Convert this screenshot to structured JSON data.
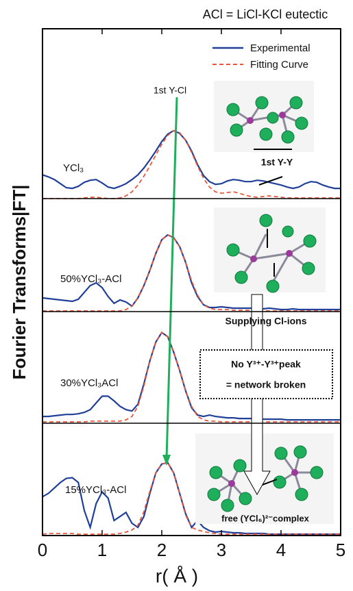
{
  "chart_data": {
    "type": "line",
    "title": "ACl = LiCl-KCl eutectic",
    "xlabel": "r( Å )",
    "ylabel": "Fourier Transforms|FT|",
    "xlim": [
      0,
      5
    ],
    "xticks": [
      0,
      1,
      2,
      3,
      4,
      5
    ],
    "x": [
      0,
      0.1,
      0.2,
      0.3,
      0.4,
      0.5,
      0.6,
      0.7,
      0.8,
      0.9,
      1,
      1.1,
      1.2,
      1.3,
      1.4,
      1.5,
      1.6,
      1.7,
      1.8,
      1.9,
      2,
      2.1,
      2.2,
      2.3,
      2.4,
      2.5,
      2.6,
      2.7,
      2.8,
      2.9,
      3,
      3.1,
      3.2,
      3.3,
      3.4,
      3.5,
      3.6,
      3.7,
      3.8,
      3.9,
      4,
      4.1,
      4.2,
      4.3,
      4.4,
      4.5,
      4.6,
      4.7,
      4.8,
      4.9,
      5
    ],
    "annotations": [
      "1st Y-Cl",
      "1st Y-Y",
      "Supplying Cl-ions",
      "No Y³⁺-Y³⁺peak",
      "= network broken",
      "free (YCl₆)²⁻complex"
    ],
    "panels": [
      {
        "label": "YCl₃",
        "ylim": [
          0,
          2.5
        ],
        "series": [
          {
            "name": "Experimental",
            "color": "#1f3f99",
            "values": [
              0.35,
              0.32,
              0.28,
              0.22,
              0.16,
              0.15,
              0.18,
              0.24,
              0.27,
              0.28,
              0.23,
              0.17,
              0.15,
              0.18,
              0.22,
              0.28,
              0.35,
              0.45,
              0.57,
              0.7,
              0.84,
              0.95,
              1.0,
              0.96,
              0.86,
              0.7,
              0.5,
              0.34,
              0.25,
              0.21,
              0.22,
              0.26,
              0.28,
              0.27,
              0.25,
              0.25,
              0.27,
              0.26,
              0.24,
              0.22,
              0.2,
              0.17,
              0.15,
              0.17,
              0.22,
              0.25,
              0.24,
              0.2,
              0.17,
              0.15,
              0.15
            ]
          },
          {
            "name": "Fitting Curve",
            "color": "#e8553a",
            "values": [
              0,
              0,
              0,
              0,
              0,
              0,
              0,
              0.01,
              0.02,
              0.02,
              0.01,
              0,
              0,
              0.01,
              0.04,
              0.1,
              0.2,
              0.33,
              0.48,
              0.64,
              0.8,
              0.93,
              1.0,
              0.97,
              0.86,
              0.68,
              0.48,
              0.3,
              0.17,
              0.1,
              0.08,
              0.09,
              0.1,
              0.08,
              0.05,
              0.03,
              0.02,
              0.03,
              0.04,
              0.03,
              0.02,
              0.01,
              0.01,
              0.01,
              0.01,
              0.01,
              0.01,
              0.01,
              0.01,
              0.01,
              0.01
            ]
          }
        ]
      },
      {
        "label": "50%YCl₃-ACl",
        "ylim": [
          0,
          1.65
        ],
        "series": [
          {
            "color": "#1f3f99",
            "values": [
              0.2,
              0.19,
              0.18,
              0.17,
              0.16,
              0.15,
              0.18,
              0.28,
              0.38,
              0.42,
              0.35,
              0.22,
              0.12,
              0.17,
              0.14,
              0.08,
              0.2,
              0.38,
              0.6,
              0.85,
              1.05,
              1.12,
              1.08,
              0.95,
              0.72,
              0.42,
              0.22,
              0.1,
              0.06,
              0.06,
              0.07,
              0.06,
              0.05,
              0.05,
              0.05,
              0.05,
              0.04,
              0.04,
              0.05,
              0.04,
              0.03,
              0.03,
              0.04,
              0.03,
              0.03,
              0.03,
              0.03,
              0.03,
              0.03,
              0.03,
              0.03
            ]
          },
          {
            "color": "#e8553a",
            "values": [
              0.01,
              0.01,
              0.01,
              0.01,
              0.01,
              0.01,
              0.01,
              0.01,
              0.01,
              0.01,
              0.01,
              0.01,
              0.01,
              0.01,
              0.03,
              0.08,
              0.2,
              0.38,
              0.6,
              0.85,
              1.05,
              1.12,
              1.08,
              0.95,
              0.72,
              0.45,
              0.24,
              0.1,
              0.05,
              0.03,
              0.03,
              0.03,
              0.02,
              0.02,
              0.02,
              0.02,
              0.02,
              0.01,
              0.01,
              0.01,
              0.01,
              0.01,
              0.01,
              0.01,
              0.01,
              0.01,
              0.01,
              0.01,
              0.01,
              0.01,
              0.01
            ]
          }
        ]
      },
      {
        "label": "30%YCl₃ACl",
        "ylim": [
          0,
          1.65
        ],
        "series": [
          {
            "color": "#1f3f99",
            "values": [
              0.1,
              0.1,
              0.11,
              0.12,
              0.13,
              0.13,
              0.14,
              0.16,
              0.2,
              0.3,
              0.4,
              0.4,
              0.33,
              0.25,
              0.2,
              0.18,
              0.28,
              0.58,
              0.92,
              1.2,
              1.34,
              1.28,
              1.05,
              0.78,
              0.48,
              0.23,
              0.12,
              0.1,
              0.12,
              0.1,
              0.09,
              0.08,
              0.08,
              0.07,
              0.07,
              0.07,
              0.06,
              0.06,
              0.06,
              0.06,
              0.06,
              0.05,
              0.05,
              0.05,
              0.05,
              0.05,
              0.05,
              0.05,
              0.05,
              0.05,
              0.05
            ]
          },
          {
            "color": "#e8553a",
            "values": [
              0.02,
              0.02,
              0.02,
              0.02,
              0.02,
              0.02,
              0.02,
              0.02,
              0.03,
              0.03,
              0.03,
              0.03,
              0.03,
              0.03,
              0.05,
              0.1,
              0.25,
              0.55,
              0.92,
              1.2,
              1.34,
              1.28,
              1.05,
              0.78,
              0.48,
              0.25,
              0.1,
              0.05,
              0.03,
              0.03,
              0.02,
              0.02,
              0.02,
              0.02,
              0.02,
              0.02,
              0.02,
              0.02,
              0.02,
              0.02,
              0.02,
              0.02,
              0.02,
              0.02,
              0.02,
              0.02,
              0.02,
              0.02,
              0.02,
              0.02,
              0.02
            ]
          }
        ]
      },
      {
        "label": "15%YCl₃-ACl",
        "ylim": [
          0,
          1.65
        ],
        "series": [
          {
            "color": "#1f3f99",
            "values": [
              0.57,
              0.62,
              0.7,
              0.78,
              0.84,
              0.85,
              0.78,
              0.37,
              0.12,
              0.47,
              0.64,
              0.55,
              0.22,
              0.28,
              0.34,
              0.18,
              0.12,
              0.28,
              0.62,
              0.92,
              1.05,
              1.07,
              0.92,
              0.62,
              0.32,
              0.12,
              0.22,
              0.12,
              0.07,
              0.05,
              0.06,
              0.05,
              0.04,
              0.04,
              0.03,
              0.03,
              0.03,
              0.03,
              0.02,
              0.02,
              0.02,
              0.02,
              0.02,
              0.02,
              0.02,
              0.02,
              0.02,
              0.02,
              0.02,
              0.02,
              0.02
            ]
          },
          {
            "color": "#e8553a",
            "values": [
              0.02,
              0.03,
              0.03,
              0.03,
              0.03,
              0.03,
              0.02,
              0.02,
              0.02,
              0.02,
              0.02,
              0.02,
              0.02,
              0.03,
              0.05,
              0.08,
              0.15,
              0.35,
              0.65,
              0.92,
              1.05,
              1.07,
              0.92,
              0.62,
              0.3,
              0.12,
              0.08,
              0.06,
              0.04,
              0.03,
              0.02,
              0.02,
              0.02,
              0.02,
              0.02,
              0.02,
              0.02,
              0.02,
              0.02,
              0.02,
              0.02,
              0.02,
              0.02,
              0.02,
              0.02,
              0.02,
              0.02,
              0.02,
              0.02,
              0.02,
              0.02
            ]
          }
        ]
      }
    ]
  }
}
